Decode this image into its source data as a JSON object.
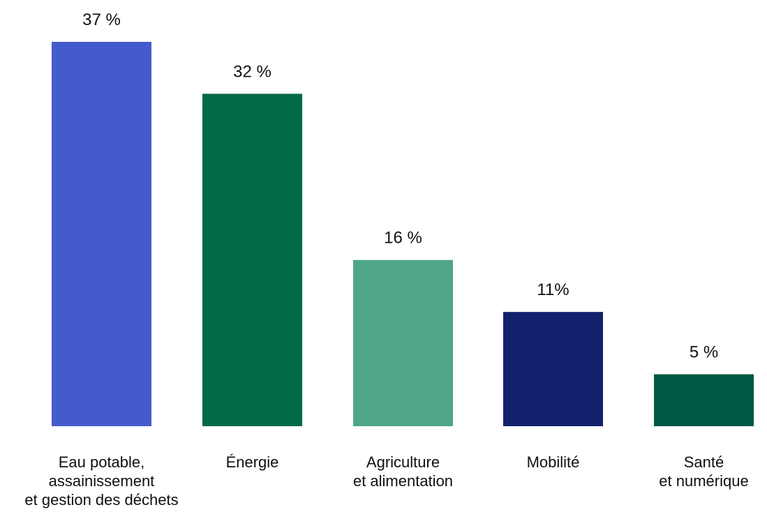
{
  "chart_data": {
    "type": "bar",
    "title": "",
    "xlabel": "",
    "ylabel": "",
    "ylim": [
      0,
      37
    ],
    "grid": false,
    "legend": "none",
    "categories": [
      "Eau potable,\nassainissement\net gestion des déchets",
      "Énergie",
      "Agriculture\net alimentation",
      "Mobilité",
      "Santé\net numérique"
    ],
    "values": [
      37,
      32,
      16,
      11,
      5
    ],
    "value_labels": [
      "37 %",
      "32 %",
      "16 %",
      "11%",
      "5 %"
    ],
    "colors": [
      "#435bcd",
      "#006a46",
      "#4ea588",
      "#12216b",
      "#005845"
    ]
  }
}
